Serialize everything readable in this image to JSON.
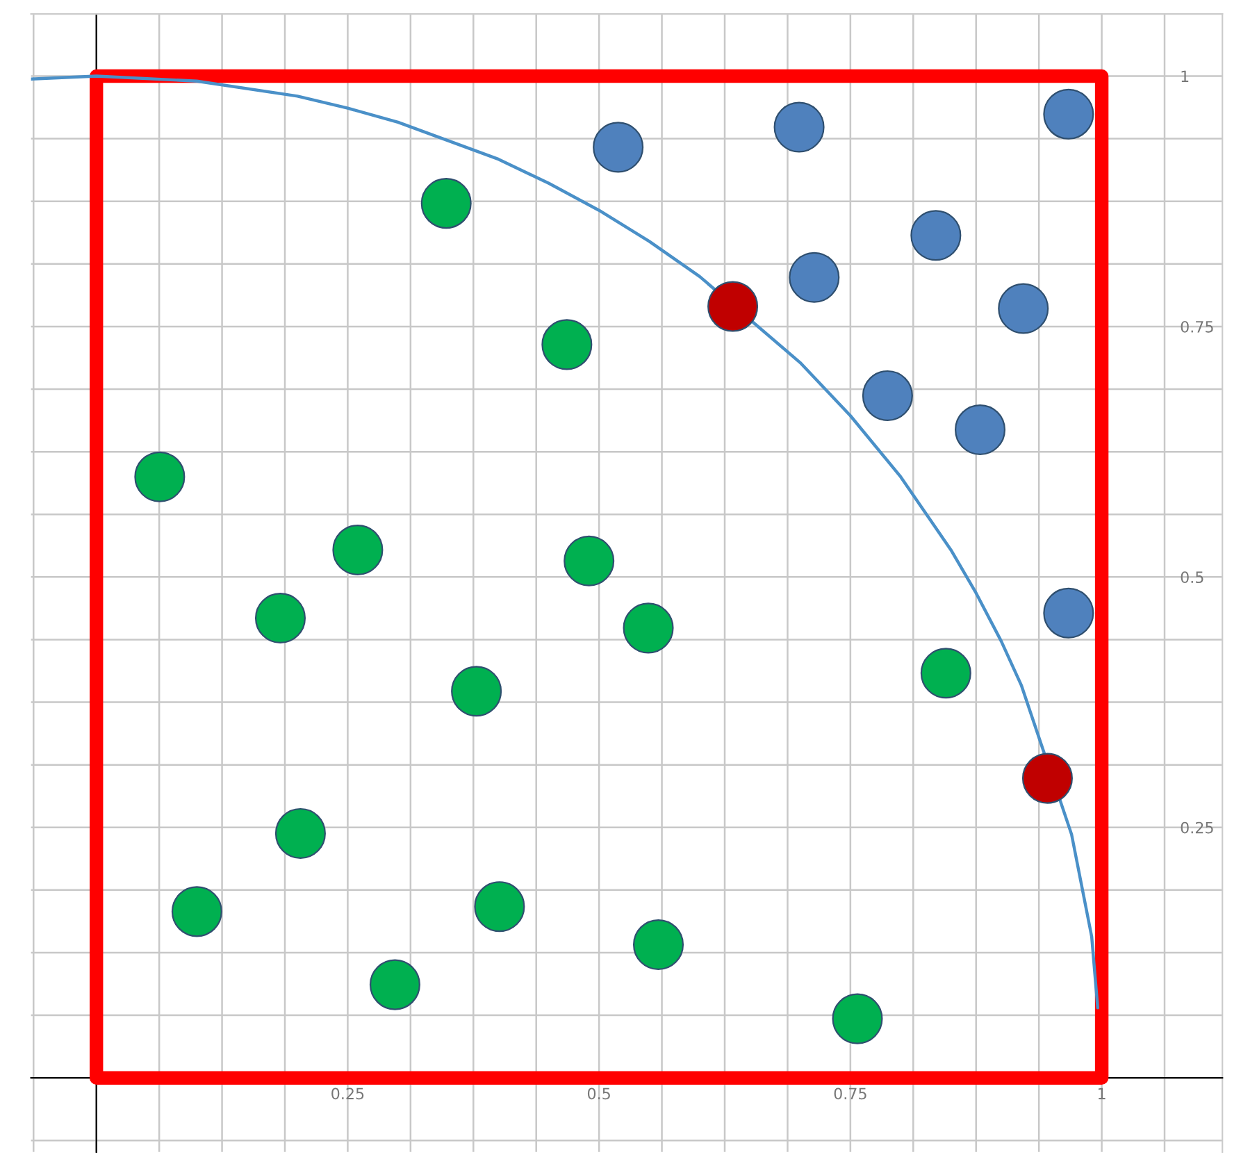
{
  "chart_data": {
    "type": "scatter",
    "xlim": [
      -0.065,
      1.12
    ],
    "ylim": [
      -0.074,
      1.062
    ],
    "xticks": [
      0.25,
      0.5,
      0.75,
      1
    ],
    "yticks": [
      0.25,
      0.5,
      0.75,
      1
    ],
    "grid": true,
    "marker": "circle",
    "series": [
      {
        "type": "line",
        "marker": "none",
        "color": "#4a90c8",
        "x": [
          -0.065,
          0,
          0.1,
          0.2,
          0.25,
          0.3,
          0.4,
          0.45,
          0.5,
          0.55,
          0.6,
          0.7,
          0.75,
          0.8,
          0.85,
          0.875,
          0.9,
          0.92,
          0.97,
          0.99,
          0.996
        ],
        "values": [
          0.997,
          1,
          0.995,
          0.98,
          0.968,
          0.954,
          0.917,
          0.893,
          0.866,
          0.835,
          0.8,
          0.714,
          0.661,
          0.6,
          0.527,
          0.484,
          0.436,
          0.392,
          0.243,
          0.141,
          0.07
        ]
      },
      {
        "color": "#00b050",
        "x": [
          0.063,
          0.348,
          0.468,
          0.26,
          0.183,
          0.49,
          0.549,
          0.378,
          0.845,
          0.203,
          0.1,
          0.401,
          0.559,
          0.297,
          0.757
        ],
        "values": [
          0.6,
          0.873,
          0.732,
          0.527,
          0.459,
          0.516,
          0.449,
          0.386,
          0.404,
          0.244,
          0.166,
          0.171,
          0.133,
          0.093,
          0.059
        ]
      },
      {
        "color": "#4f81bd",
        "x": [
          0.519,
          0.699,
          0.967,
          0.835,
          0.714,
          0.922,
          0.787,
          0.879,
          0.967
        ],
        "values": [
          0.929,
          0.949,
          0.962,
          0.841,
          0.799,
          0.768,
          0.681,
          0.647,
          0.464
        ]
      },
      {
        "color": "#c00000",
        "x": [
          0.633,
          0.946
        ],
        "values": [
          0.77,
          0.299
        ]
      }
    ]
  }
}
